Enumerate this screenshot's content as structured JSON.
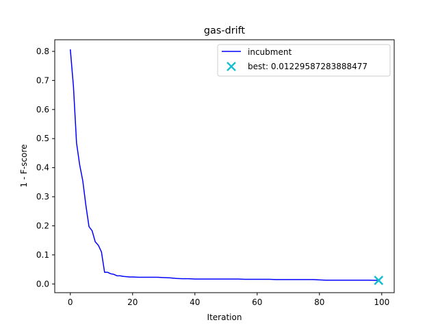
{
  "chart_data": {
    "type": "line",
    "title": "gas-drift",
    "xlabel": "Iteration",
    "ylabel": "1 - F-score",
    "xlim": [
      -5,
      104
    ],
    "ylim": [
      -0.03,
      0.84
    ],
    "xticks": [
      0,
      20,
      40,
      60,
      80,
      100
    ],
    "yticks": [
      0.0,
      0.1,
      0.2,
      0.3,
      0.4,
      0.5,
      0.6,
      0.7,
      0.8
    ],
    "xtick_labels": [
      "0",
      "20",
      "40",
      "60",
      "80",
      "100"
    ],
    "ytick_labels": [
      "0.0",
      "0.1",
      "0.2",
      "0.3",
      "0.4",
      "0.5",
      "0.6",
      "0.7",
      "0.8"
    ],
    "grid": false,
    "legend_position": "top-right",
    "series": [
      {
        "name": "incubment",
        "color": "#0000ff",
        "x": [
          0,
          1,
          2,
          3,
          4,
          5,
          6,
          7,
          8,
          9,
          10,
          11,
          12,
          13,
          14,
          15,
          16,
          17,
          18,
          19,
          20,
          22,
          24,
          26,
          28,
          30,
          32,
          34,
          36,
          38,
          40,
          42,
          44,
          46,
          48,
          50,
          52,
          54,
          56,
          58,
          60,
          62,
          64,
          66,
          68,
          70,
          72,
          74,
          76,
          78,
          80,
          82,
          84,
          86,
          88,
          90,
          92,
          94,
          96,
          98,
          99
        ],
        "y": [
          0.807,
          0.68,
          0.485,
          0.41,
          0.355,
          0.27,
          0.197,
          0.183,
          0.145,
          0.133,
          0.11,
          0.04,
          0.04,
          0.035,
          0.033,
          0.028,
          0.028,
          0.026,
          0.025,
          0.024,
          0.024,
          0.023,
          0.023,
          0.023,
          0.023,
          0.022,
          0.021,
          0.019,
          0.018,
          0.018,
          0.017,
          0.017,
          0.017,
          0.017,
          0.017,
          0.017,
          0.017,
          0.017,
          0.016,
          0.016,
          0.016,
          0.016,
          0.016,
          0.015,
          0.015,
          0.015,
          0.015,
          0.015,
          0.015,
          0.015,
          0.014,
          0.013,
          0.013,
          0.013,
          0.013,
          0.013,
          0.013,
          0.013,
          0.013,
          0.0123,
          0.0123
        ]
      }
    ],
    "best_point": {
      "label": "best: 0.01229587283888477",
      "x": 99,
      "y": 0.01229587283888477,
      "color": "#17becf",
      "marker": "x"
    }
  }
}
